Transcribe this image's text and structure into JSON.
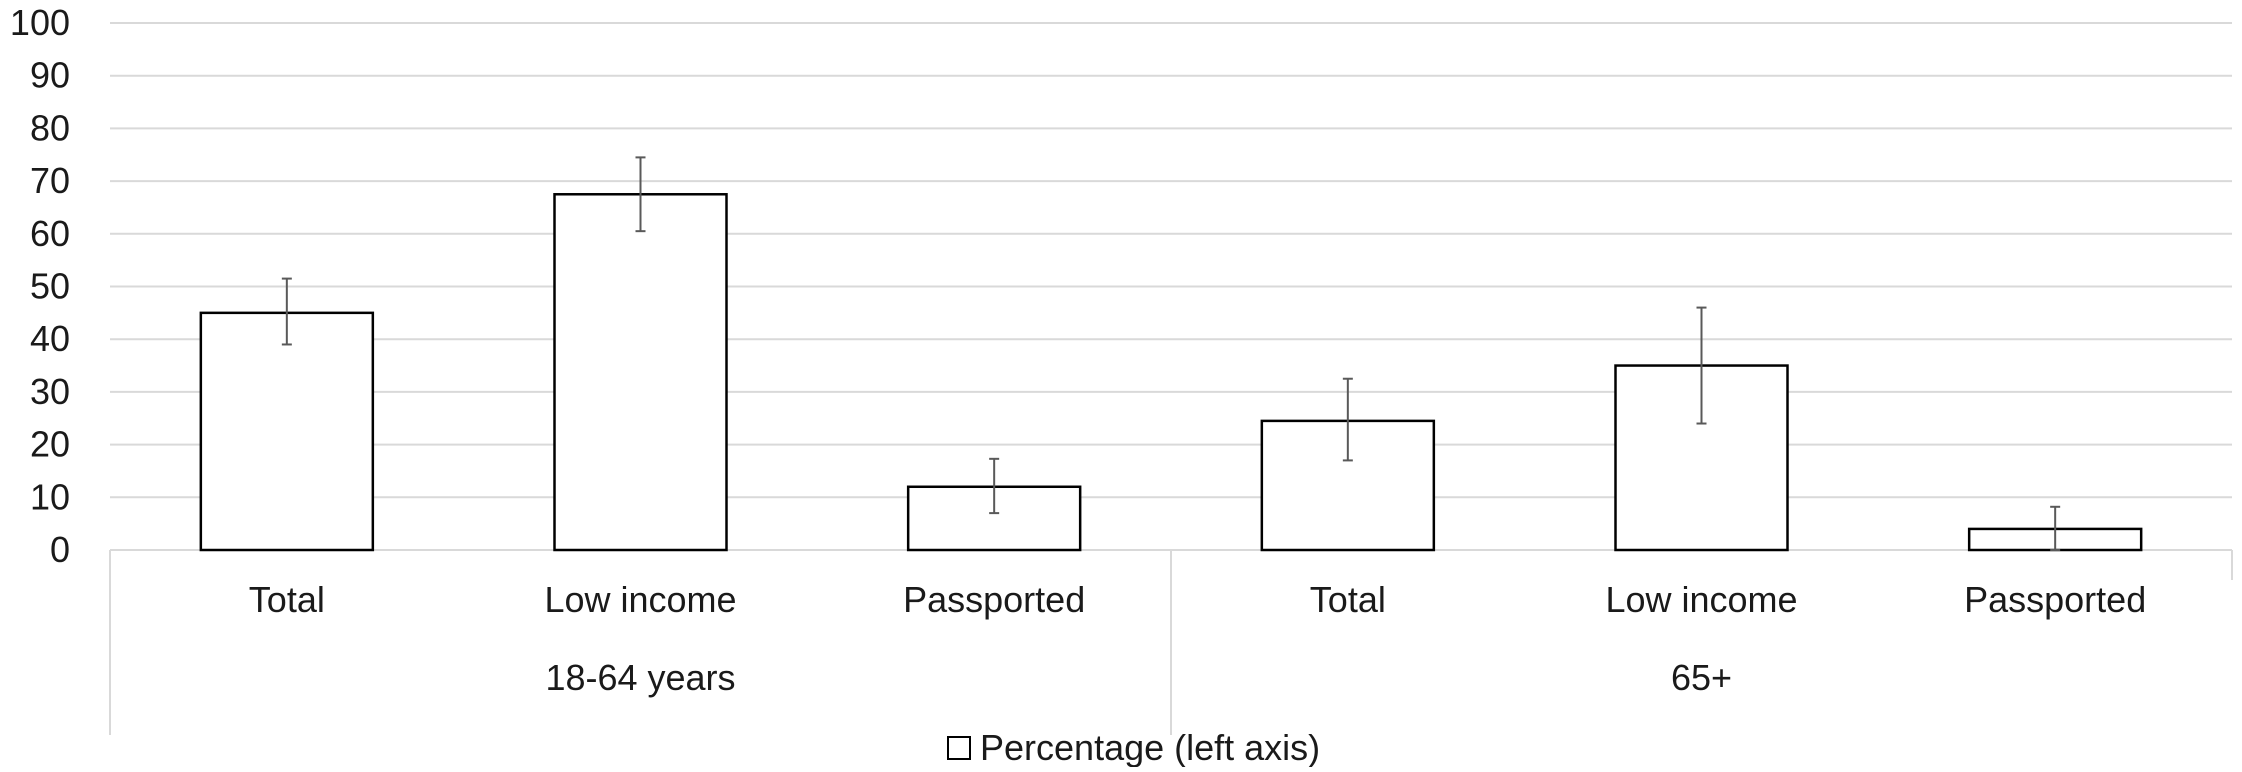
{
  "chart_data": {
    "type": "bar",
    "groups": [
      {
        "label": "18-64 years",
        "categories": [
          "Total",
          "Low income",
          "Passported"
        ]
      },
      {
        "label": "65+",
        "categories": [
          "Total",
          "Low income",
          "Passported"
        ]
      }
    ],
    "categories": [
      "Total",
      "Low income",
      "Passported",
      "Total",
      "Low income",
      "Passported"
    ],
    "series": [
      {
        "name": "Percentage (left axis)",
        "values": [
          45,
          67.5,
          12,
          24.5,
          35,
          4
        ],
        "error_low": [
          39,
          60.5,
          7,
          17,
          24,
          0
        ],
        "error_high": [
          51.5,
          74.5,
          17.3,
          32.5,
          46,
          8.2
        ],
        "color": "#ffffff",
        "stroke": "#000000"
      }
    ],
    "yticks": [
      0,
      10,
      20,
      30,
      40,
      50,
      60,
      70,
      80,
      90,
      100
    ],
    "ylim": [
      0,
      100
    ],
    "title": "",
    "xlabel": "",
    "ylabel": "",
    "grid": true,
    "legend_position": "bottom"
  }
}
